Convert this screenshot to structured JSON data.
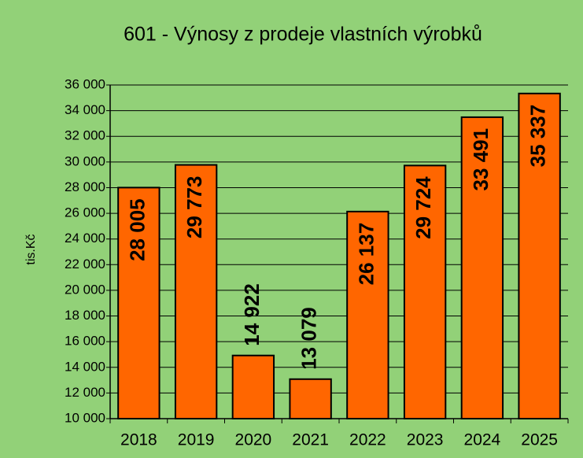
{
  "chart_data": {
    "type": "bar",
    "title": "601 - Výnosy z prodeje vlastních výrobků",
    "ylabel": "tis.Kč",
    "categories": [
      "2018",
      "2019",
      "2020",
      "2021",
      "2022",
      "2023",
      "2024",
      "2025"
    ],
    "values": [
      28005,
      29773,
      14922,
      13079,
      26137,
      29724,
      33491,
      35337
    ],
    "value_labels": [
      "28 005",
      "29 773",
      "14 922",
      "13 079",
      "26 137",
      "29 724",
      "33 491",
      "35 337"
    ],
    "color": "#ff6600",
    "ylim": [
      10000,
      36000
    ],
    "yticks": [
      {
        "value": 10000,
        "label": "10 000"
      },
      {
        "value": 12000,
        "label": "12 000"
      },
      {
        "value": 14000,
        "label": "14 000"
      },
      {
        "value": 16000,
        "label": "16 000"
      },
      {
        "value": 18000,
        "label": "18 000"
      },
      {
        "value": 20000,
        "label": "20 000"
      },
      {
        "value": 22000,
        "label": "22 000"
      },
      {
        "value": 24000,
        "label": "24 000"
      },
      {
        "value": 26000,
        "label": "26 000"
      },
      {
        "value": 28000,
        "label": "28 000"
      },
      {
        "value": 30000,
        "label": "30 000"
      },
      {
        "value": 32000,
        "label": "32 000"
      },
      {
        "value": 34000,
        "label": "34 000"
      },
      {
        "value": 36000,
        "label": "36 000"
      }
    ],
    "grid": true
  }
}
